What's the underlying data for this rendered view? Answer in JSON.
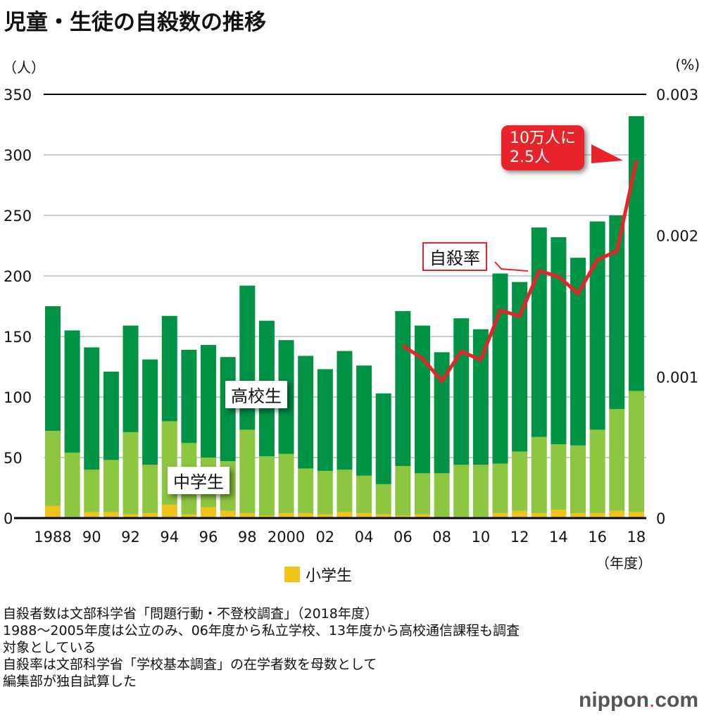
{
  "title": "児童・生徒の自殺数の推移",
  "chart_data": {
    "type": "bar",
    "title": "児童・生徒の自殺数の推移",
    "ylabel": "（人）",
    "y2label": "(%)",
    "xunit": "（年度）",
    "ylim": [
      0,
      350
    ],
    "y2lim": [
      0,
      0.003
    ],
    "yticks": [
      "0",
      "50",
      "100",
      "150",
      "200",
      "250",
      "300",
      "350"
    ],
    "y2ticks": [
      "0",
      "0.001",
      "0.002",
      "0.003"
    ],
    "categories": [
      1988,
      1989,
      1990,
      1991,
      1992,
      1993,
      1994,
      1995,
      1996,
      1997,
      1998,
      1999,
      2000,
      2001,
      2002,
      2003,
      2004,
      2005,
      2006,
      2007,
      2008,
      2009,
      2010,
      2011,
      2012,
      2013,
      2014,
      2015,
      2016,
      2017,
      2018
    ],
    "xticklabels": [
      "1988",
      "90",
      "92",
      "94",
      "96",
      "98",
      "2000",
      "02",
      "04",
      "06",
      "08",
      "10",
      "12",
      "14",
      "16",
      "18"
    ],
    "series": [
      {
        "name": "小学生",
        "color": "#f0c31a",
        "values": [
          10,
          1,
          5,
          5,
          3,
          4,
          11,
          3,
          9,
          6,
          4,
          2,
          4,
          4,
          3,
          5,
          4,
          3,
          2,
          3,
          0,
          1,
          1,
          4,
          6,
          4,
          7,
          4,
          4,
          6,
          5
        ]
      },
      {
        "name": "中学生",
        "color": "#8dc63f",
        "values": [
          62,
          53,
          35,
          43,
          68,
          40,
          69,
          59,
          41,
          41,
          69,
          49,
          49,
          37,
          36,
          35,
          31,
          25,
          41,
          34,
          37,
          43,
          43,
          41,
          49,
          63,
          54,
          56,
          69,
          84,
          100
        ]
      },
      {
        "name": "高校生",
        "color": "#009245",
        "values": [
          103,
          101,
          101,
          73,
          88,
          87,
          87,
          77,
          93,
          86,
          119,
          112,
          94,
          93,
          84,
          98,
          91,
          75,
          128,
          122,
          100,
          121,
          112,
          157,
          140,
          173,
          171,
          155,
          172,
          160,
          227
        ]
      },
      {
        "name": "自殺率",
        "color": "#e8242b",
        "axis": "right",
        "x": [
          2006,
          2007,
          2008,
          2009,
          2010,
          2011,
          2012,
          2013,
          2014,
          2015,
          2016,
          2017,
          2018
        ],
        "values": [
          0.00122,
          0.00113,
          0.00097,
          0.00118,
          0.00112,
          0.00147,
          0.00143,
          0.00175,
          0.00171,
          0.00159,
          0.00183,
          0.00189,
          0.00253
        ]
      }
    ],
    "annotations": {
      "high": "高校生",
      "junior": "中学生",
      "rate": "自殺率",
      "callout": [
        "10万人に",
        "2.5人"
      ]
    },
    "legend": "小学生"
  },
  "notes": [
    "自殺者数は文部科学省「問題行動・不登校調査」（2018年度）",
    "1988～2005年度は公立のみ、06年度から私立学校、13年度から高校通信課程も調査",
    "対象としている",
    "自殺率は文部科学省「学校基本調査」の在学者数を母数として",
    "編集部が独自試算した"
  ],
  "logo": {
    "main": "nippon",
    "dot": ".",
    "tld": "com"
  }
}
